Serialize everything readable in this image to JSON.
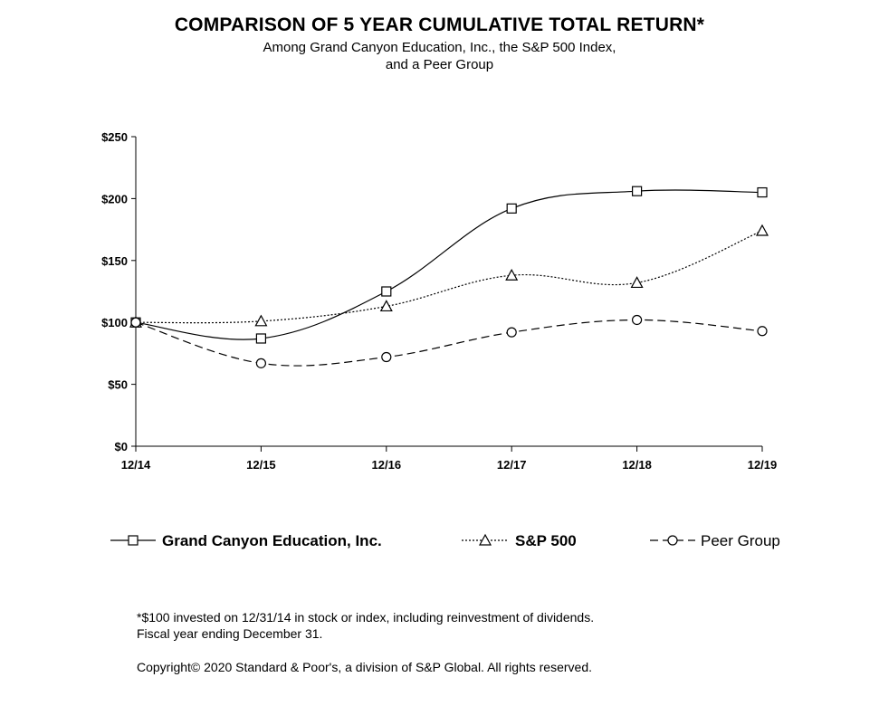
{
  "header": {
    "title": "COMPARISON OF 5 YEAR CUMULATIVE TOTAL RETURN*",
    "subtitle_line1": "Among Grand Canyon Education, Inc., the S&P 500 Index,",
    "subtitle_line2": "and a Peer Group"
  },
  "chart_data": {
    "type": "line",
    "categories": [
      "12/14",
      "12/15",
      "12/16",
      "12/17",
      "12/18",
      "12/19"
    ],
    "ylim": [
      0,
      250
    ],
    "yticks": [
      0,
      50,
      100,
      150,
      200,
      250
    ],
    "ytick_labels": [
      "$0",
      "$50",
      "$100",
      "$150",
      "$200",
      "$250"
    ],
    "grid": false,
    "legend_position": "bottom",
    "series": [
      {
        "name": "Grand Canyon Education, Inc.",
        "marker": "square",
        "line": "solid",
        "values": [
          100,
          87,
          125,
          192,
          206,
          205
        ]
      },
      {
        "name": "S&P 500",
        "marker": "triangle",
        "line": "dotted",
        "values": [
          100,
          101,
          113,
          138,
          132,
          174
        ]
      },
      {
        "name": "Peer Group",
        "marker": "circle",
        "line": "dashed",
        "values": [
          100,
          67,
          72,
          92,
          102,
          93
        ]
      }
    ]
  },
  "footnote": {
    "line1": "*$100 invested on 12/31/14 in stock or index, including reinvestment of dividends.",
    "line2": "Fiscal year ending December 31.",
    "copyright": "Copyright© 2020 Standard & Poor's, a division of S&P Global.  All rights reserved."
  }
}
